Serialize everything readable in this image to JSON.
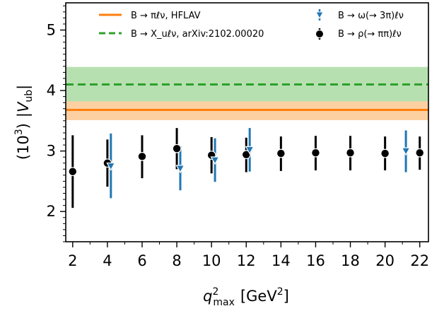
{
  "chart_data": {
    "type": "scatter",
    "title": "",
    "xlabel_main": "q",
    "xlabel_sup": "2",
    "xlabel_sub": "max",
    "xlabel_unit_open": "[GeV",
    "xlabel_unit_sup": "2",
    "xlabel_unit_close": "]",
    "ylabel_prefix": "(10",
    "ylabel_prefix_sup": "3",
    "ylabel_close": ")",
    "ylabel_main": "|V",
    "ylabel_sub": "ub",
    "ylabel_end": "|",
    "xlim": [
      1.6,
      22.5
    ],
    "ylim": [
      1.5,
      5.45
    ],
    "xticks": [
      2,
      4,
      6,
      8,
      10,
      12,
      14,
      16,
      18,
      20,
      22
    ],
    "yticks": [
      2,
      3,
      4,
      5
    ],
    "grid": false,
    "legend_position": "top",
    "bands": [
      {
        "name": "B → πℓν, HFLAV",
        "center": 3.68,
        "low": 3.51,
        "high": 3.85,
        "color": "#ff7f0e",
        "fill": "#fdd0a2",
        "style": "solid"
      },
      {
        "name": "B → X_uℓν, arXiv:2102.00020",
        "center": 4.1,
        "low": 3.82,
        "high": 4.39,
        "color": "#2ca02c",
        "fill": "#b7e0b0",
        "style": "dashed"
      }
    ],
    "series": [
      {
        "name": "B → ρ(→ ππ)ℓν",
        "marker": "circle",
        "color": "#000000",
        "points": [
          {
            "x": 2,
            "y": 2.66,
            "lo": 2.06,
            "hi": 3.26
          },
          {
            "x": 4,
            "y": 2.8,
            "lo": 2.41,
            "hi": 3.19
          },
          {
            "x": 6,
            "y": 2.91,
            "lo": 2.55,
            "hi": 3.26
          },
          {
            "x": 8,
            "y": 3.04,
            "lo": 2.7,
            "hi": 3.38
          },
          {
            "x": 10,
            "y": 2.93,
            "lo": 2.63,
            "hi": 3.23
          },
          {
            "x": 12,
            "y": 2.94,
            "lo": 2.65,
            "hi": 3.22
          },
          {
            "x": 14,
            "y": 2.96,
            "lo": 2.67,
            "hi": 3.24
          },
          {
            "x": 16,
            "y": 2.97,
            "lo": 2.68,
            "hi": 3.25
          },
          {
            "x": 18,
            "y": 2.97,
            "lo": 2.68,
            "hi": 3.25
          },
          {
            "x": 20,
            "y": 2.96,
            "lo": 2.68,
            "hi": 3.24
          },
          {
            "x": 22,
            "y": 2.97,
            "lo": 2.69,
            "hi": 3.24
          }
        ]
      },
      {
        "name": "B → ω(→ 3π)ℓν",
        "marker": "triangle-down",
        "color": "#1f77b4",
        "points": [
          {
            "x": 4.2,
            "y": 2.75,
            "lo": 2.22,
            "hi": 3.29
          },
          {
            "x": 8.2,
            "y": 2.71,
            "lo": 2.35,
            "hi": 3.08
          },
          {
            "x": 10.2,
            "y": 2.85,
            "lo": 2.49,
            "hi": 3.21
          },
          {
            "x": 12.2,
            "y": 3.02,
            "lo": 2.66,
            "hi": 3.38
          },
          {
            "x": 21.2,
            "y": 3.0,
            "lo": 2.65,
            "hi": 3.34
          }
        ]
      }
    ]
  }
}
